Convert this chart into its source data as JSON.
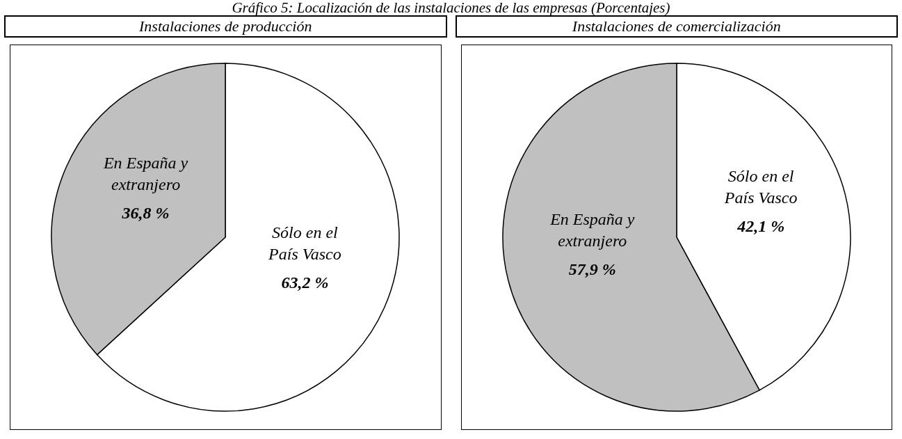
{
  "chart_data": [
    {
      "type": "pie",
      "title": "Instalaciones de producción",
      "annotations": [
        "Gráfico 5: Localización de las instalaciones de las empresas (Porcentajes)"
      ],
      "categories": [
        "Sólo en el País Vasco",
        "En España y extranjero"
      ],
      "values": [
        63.2,
        36.8
      ],
      "colors": [
        "#ffffff",
        "#c0c0c0"
      ],
      "value_labels": [
        "63,2 %",
        "36,8 %"
      ]
    },
    {
      "type": "pie",
      "title": "Instalaciones de comercialización",
      "categories": [
        "Sólo en el País Vasco",
        "En España y extranjero"
      ],
      "values": [
        42.1,
        57.9
      ],
      "colors": [
        "#ffffff",
        "#c0c0c0"
      ],
      "value_labels": [
        "42,1 %",
        "57,9 %"
      ]
    }
  ]
}
